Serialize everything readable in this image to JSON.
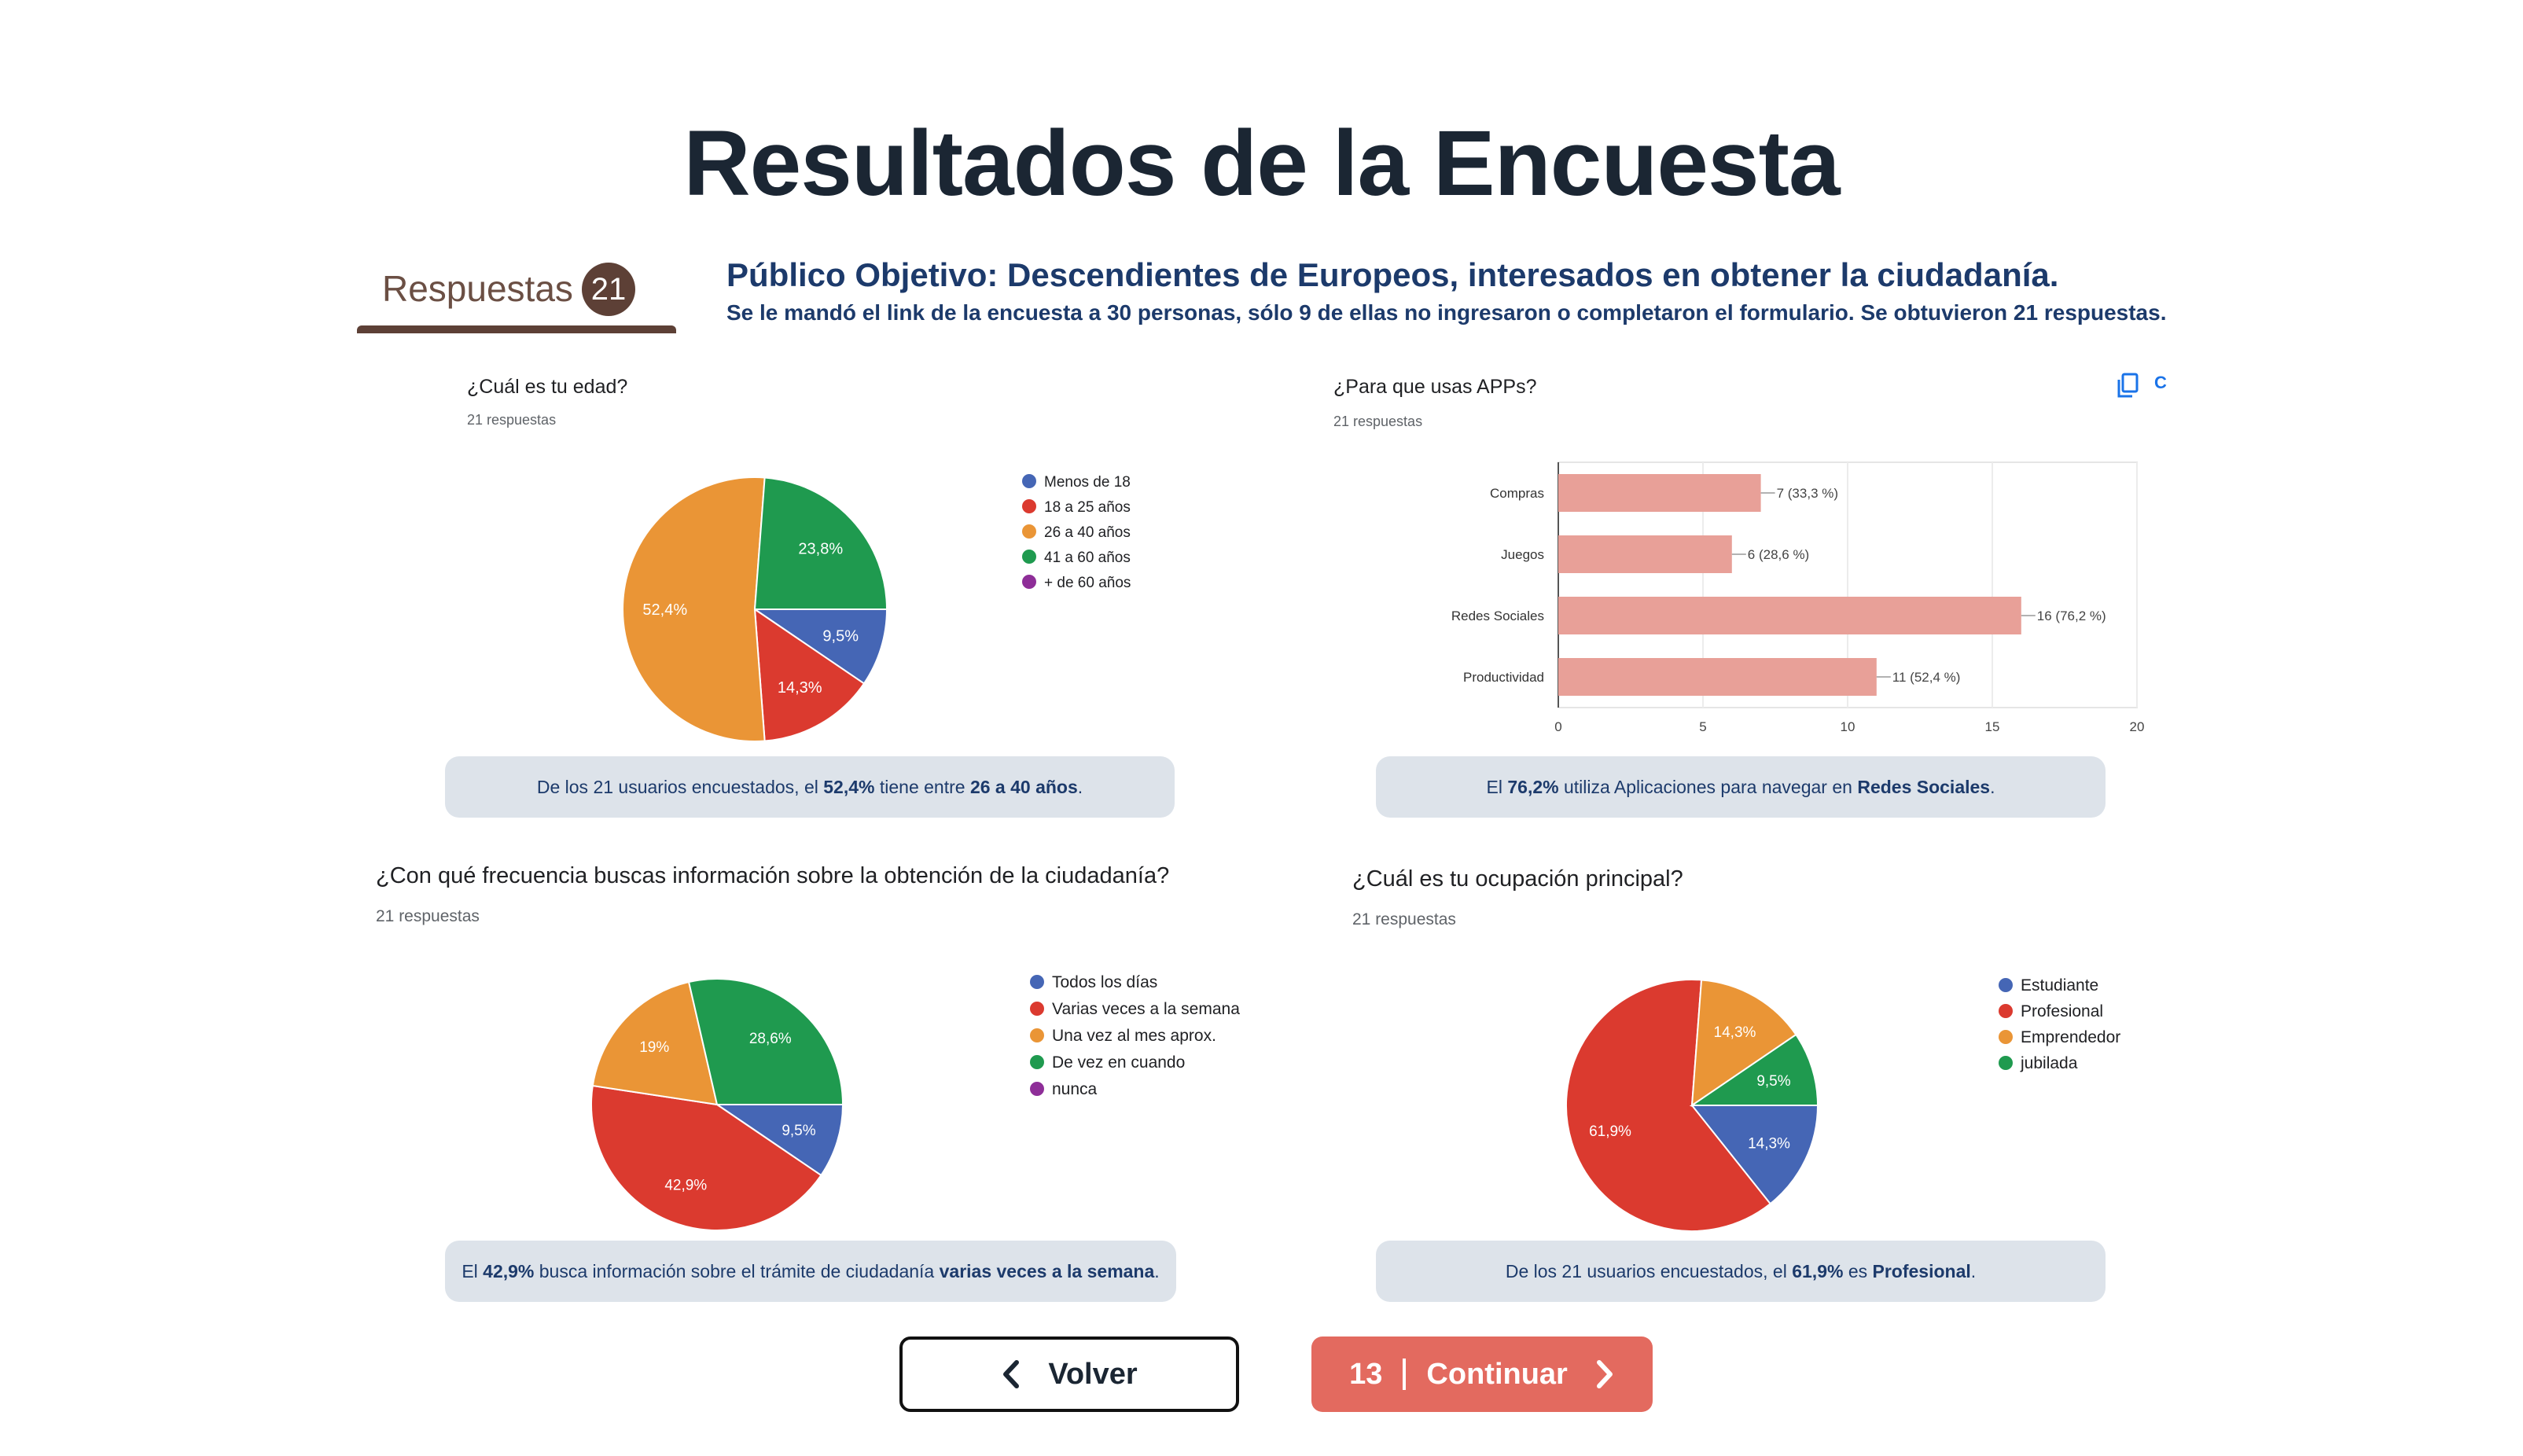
{
  "title": "Resultados de la Encuesta",
  "responses_tab": {
    "label": "Respuestas",
    "count": "21"
  },
  "audience": {
    "headline": "Público Objetivo: Descendientes de Europeos, interesados en obtener la ciudadanía.",
    "note": "Se le mandó el link de la encuesta a 30 personas, sólo 9 de ellas no ingresaron o completaron el formulario. Se obtuvieron 21 respuestas."
  },
  "copy_icon": {
    "icon": "copy-icon",
    "label": "C",
    "color": "#1a73e8"
  },
  "chart_data": [
    {
      "id": "age",
      "type": "pie",
      "question": "¿Cuál es tu edad?",
      "responses": "21 respuestas",
      "categories": [
        "Menos de 18",
        "18 a 25 años",
        "26 a 40 años",
        "41 a 60 años",
        "+ de 60 años"
      ],
      "values": [
        9.5,
        14.3,
        52.4,
        23.8,
        0
      ],
      "labels": [
        "9,5%",
        "14,3%",
        "52,4%",
        "23,8%",
        ""
      ],
      "colors": [
        "#4566b5",
        "#db3a2f",
        "#ea9536",
        "#1f9a4f",
        "#8e2e98"
      ],
      "legend": "right",
      "summary": {
        "pre": "De los 21 usuarios encuestados, el ",
        "b1": "52,4%",
        "mid": " tiene entre ",
        "b2": "26 a 40 años",
        "post": "."
      }
    },
    {
      "id": "apps",
      "type": "bar",
      "question": "¿Para que usas APPs?",
      "responses": "21 respuestas",
      "categories": [
        "Compras",
        "Juegos",
        "Redes Sociales",
        "Productividad"
      ],
      "values": [
        7,
        6,
        16,
        11
      ],
      "labels": [
        "7 (33,3 %)",
        "6 (28,6 %)",
        "16 (76,2 %)",
        "11 (52,4 %)"
      ],
      "xticks": [
        "0",
        "5",
        "10",
        "15",
        "20"
      ],
      "xlim": [
        0,
        20
      ],
      "color": "#e8a098",
      "summary": {
        "pre": "El ",
        "b1": "76,2%",
        "mid": " utiliza Aplicaciones para navegar en ",
        "b2": "Redes Sociales",
        "post": "."
      }
    },
    {
      "id": "frequency",
      "type": "pie",
      "question": "¿Con qué frecuencia buscas información sobre la obtención de la ciudadanía?",
      "responses": "21 respuestas",
      "categories": [
        "Todos los días",
        "Varias veces a la semana",
        "Una vez al mes aprox.",
        "De vez en cuando",
        "nunca"
      ],
      "values": [
        9.5,
        42.9,
        19,
        28.6,
        0
      ],
      "labels": [
        "9,5%",
        "42,9%",
        "19%",
        "28,6%",
        ""
      ],
      "colors": [
        "#4566b5",
        "#db3a2f",
        "#ea9536",
        "#1f9a4f",
        "#8e2e98"
      ],
      "legend": "right",
      "summary": {
        "pre": "El ",
        "b1": "42,9%",
        "mid": " busca información sobre el trámite de ciudadanía ",
        "b2": "varias veces a la semana",
        "post": "."
      }
    },
    {
      "id": "occupation",
      "type": "pie",
      "question": "¿Cuál es tu ocupación principal?",
      "responses": "21 respuestas",
      "categories": [
        "Estudiante",
        "Profesional",
        "Emprendedor",
        "jubilada"
      ],
      "values": [
        14.3,
        61.9,
        14.3,
        9.5
      ],
      "labels": [
        "14,3%",
        "61,9%",
        "14,3%",
        "9,5%"
      ],
      "colors": [
        "#4566b5",
        "#db3a2f",
        "#ea9536",
        "#1f9a4f"
      ],
      "legend": "right",
      "summary": {
        "pre": "De los 21 usuarios encuestados, el ",
        "b1": "61,9%",
        "mid": " es ",
        "b2": "Profesional",
        "post": "."
      }
    }
  ],
  "nav": {
    "back_label": "Volver",
    "back_icon": "chevron-left-icon",
    "continue_page": "13",
    "continue_label": "Continuar",
    "continue_icon": "chevron-right-icon"
  }
}
